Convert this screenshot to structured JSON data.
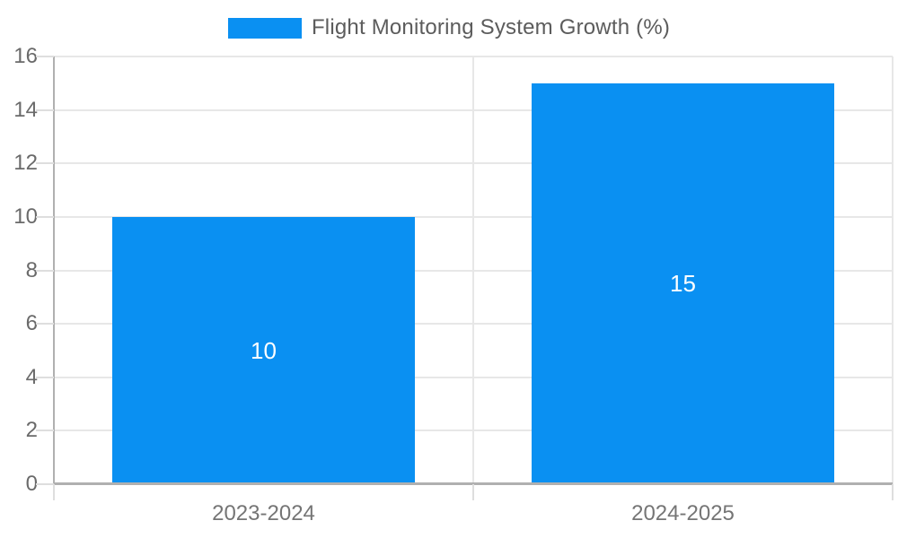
{
  "chart_data": {
    "type": "bar",
    "title": "Flight Monitoring System Growth (%)",
    "series_name": "Flight Monitoring System Growth (%)",
    "categories": [
      "2023-2024",
      "2024-2025"
    ],
    "values": [
      10,
      15
    ],
    "data_labels": [
      "10",
      "15"
    ],
    "yticks": [
      0,
      2,
      4,
      6,
      8,
      10,
      12,
      14,
      16
    ],
    "ylim": [
      0,
      16
    ],
    "xlabel": "",
    "ylabel": "",
    "grid": true,
    "legend_position": "top-center"
  },
  "legend": {
    "label": "Flight Monitoring System Growth (%)"
  },
  "colors": {
    "bar": "#0a90f2",
    "data_label": "#ffffff",
    "axis_line": "#b0b0b0",
    "gridline": "#e7e7e7",
    "tick": "#dedede",
    "y_label_text": "#6a6a6a",
    "x_label_text": "#757575",
    "legend_text": "#5c5c5c"
  }
}
